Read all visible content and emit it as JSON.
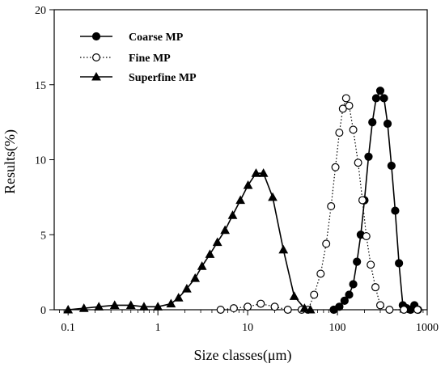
{
  "chart_data": {
    "type": "line",
    "title": "",
    "xlabel": "Size classes(μm)",
    "ylabel": "Results(%)",
    "xscale": "log",
    "xlim": [
      0.07,
      1000
    ],
    "ylim": [
      0,
      20
    ],
    "xticks": [
      {
        "value": 0.1,
        "label": "0.1"
      },
      {
        "value": 1,
        "label": "1"
      },
      {
        "value": 10,
        "label": "10"
      },
      {
        "value": 100,
        "label": "100"
      },
      {
        "value": 1000,
        "label": "1000"
      }
    ],
    "yticks": [
      {
        "value": 0,
        "label": "0"
      },
      {
        "value": 5,
        "label": "5"
      },
      {
        "value": 10,
        "label": "10"
      },
      {
        "value": 15,
        "label": "15"
      },
      {
        "value": 20,
        "label": "20"
      }
    ],
    "grid": false,
    "legend_position": "top-left",
    "series": [
      {
        "name": "Coarse MP",
        "marker": "filled-circle",
        "line": "solid",
        "color": "#000000",
        "x": [
          91,
          105,
          120,
          135,
          150,
          165,
          182,
          200,
          222,
          245,
          270,
          300,
          330,
          362,
          400,
          440,
          485,
          535,
          590,
          650,
          720,
          790
        ],
        "y": [
          0,
          0.2,
          0.6,
          1.0,
          1.7,
          3.2,
          5.0,
          7.3,
          10.2,
          12.5,
          14.1,
          14.6,
          14.1,
          12.4,
          9.6,
          6.6,
          3.1,
          0.3,
          0.1,
          0,
          0.3,
          0
        ]
      },
      {
        "name": "Fine MP",
        "marker": "open-circle",
        "line": "dotted",
        "color": "#000000",
        "x": [
          5,
          7,
          10,
          14,
          20,
          28,
          40,
          47,
          55,
          65,
          75,
          85,
          95,
          105,
          115,
          125,
          135,
          150,
          170,
          190,
          210,
          235,
          265,
          300,
          380,
          550,
          780
        ],
        "y": [
          0,
          0.1,
          0.2,
          0.4,
          0.2,
          0,
          0,
          0,
          1.0,
          2.4,
          4.4,
          6.9,
          9.5,
          11.8,
          13.4,
          14.1,
          13.6,
          12.0,
          9.8,
          7.3,
          4.9,
          3.0,
          1.5,
          0.3,
          0,
          0,
          0
        ]
      },
      {
        "name": "Superfine MP",
        "marker": "filled-triangle",
        "line": "solid",
        "color": "#000000",
        "x": [
          0.1,
          0.15,
          0.22,
          0.33,
          0.5,
          0.7,
          1.0,
          1.4,
          1.7,
          2.1,
          2.6,
          3.1,
          3.8,
          4.6,
          5.6,
          6.8,
          8.3,
          10.1,
          12.4,
          15.0,
          19.0,
          25.0,
          33.0,
          43.0,
          50.0
        ],
        "y": [
          0,
          0.1,
          0.2,
          0.3,
          0.3,
          0.2,
          0.2,
          0.4,
          0.8,
          1.4,
          2.1,
          2.9,
          3.7,
          4.5,
          5.3,
          6.3,
          7.3,
          8.3,
          9.1,
          9.1,
          7.5,
          4.0,
          0.9,
          0.1,
          0
        ]
      }
    ]
  }
}
